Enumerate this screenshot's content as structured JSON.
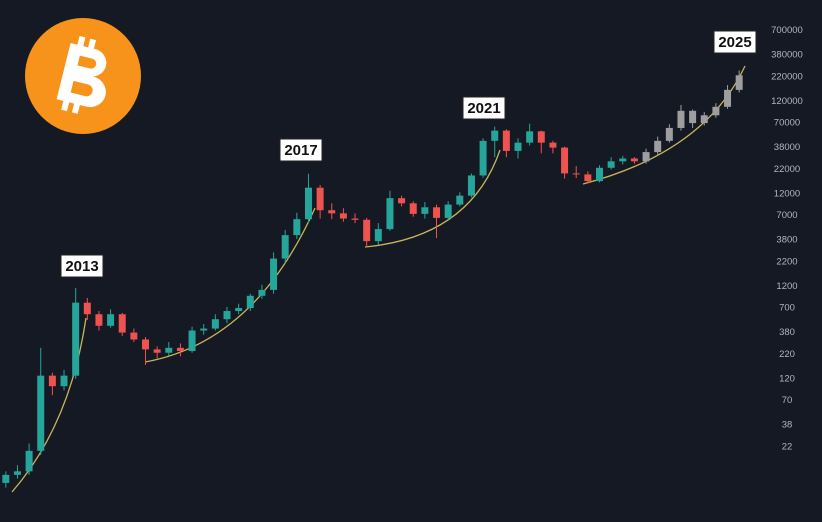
{
  "chart_data": {
    "type": "candlestick",
    "annotations": [
      "2013",
      "2017",
      "2021",
      "2025"
    ],
    "log_scale": true,
    "grid": false,
    "background": "#151924",
    "ylim": [
      3.4,
      1500000
    ],
    "yticks": [
      22,
      38,
      70,
      120,
      220,
      380,
      700,
      1200,
      2200,
      3800,
      7000,
      12000,
      22000,
      38000,
      70000,
      120000,
      220000,
      380000,
      700000
    ],
    "categories": [
      null,
      null,
      null,
      null,
      null,
      null,
      null,
      null,
      null,
      null,
      null,
      null,
      null,
      null,
      null,
      null,
      null,
      null,
      null,
      null,
      null,
      null,
      null,
      null,
      null,
      null,
      null,
      null,
      null,
      null,
      null,
      null,
      null,
      null,
      null,
      null,
      null,
      null,
      null,
      null,
      null,
      null,
      null,
      null,
      null,
      null,
      null,
      null,
      null,
      null,
      null,
      null,
      null,
      null,
      null,
      null,
      null,
      null,
      null,
      null,
      null,
      null,
      null,
      null
    ],
    "series": [
      {
        "up_color": "#26a69a",
        "down_color": "#ef5350",
        "open": [
          9,
          11,
          12,
          20,
          130,
          100,
          130,
          800,
          600,
          450,
          600,
          380,
          320,
          250,
          230,
          260,
          240,
          400,
          420,
          530,
          650,
          700,
          950,
          1100,
          2400,
          4300,
          6400,
          14000,
          8000,
          7400,
          6500,
          6300,
          3700,
          5000,
          10800,
          9500,
          7300,
          8600,
          6600,
          9200,
          11500,
          19000,
          45000,
          58000,
          35000,
          43000,
          57000,
          43000,
          38000,
          20000,
          19500,
          16500,
          23000,
          27000,
          29000,
          null,
          null,
          null,
          null,
          null,
          null,
          null,
          null,
          null
        ],
        "high": [
          12,
          14,
          24,
          260,
          140,
          150,
          1150,
          900,
          650,
          680,
          620,
          420,
          340,
          270,
          300,
          290,
          440,
          470,
          600,
          720,
          780,
          1000,
          1250,
          2800,
          4900,
          7500,
          19800,
          15000,
          9500,
          8400,
          7400,
          6600,
          5800,
          13000,
          11500,
          10000,
          9800,
          9200,
          10000,
          12500,
          20000,
          48000,
          64000,
          60000,
          48000,
          69000,
          58000,
          45000,
          39000,
          24000,
          21000,
          24500,
          30000,
          31000,
          30000,
          null,
          null,
          null,
          null,
          null,
          null,
          null,
          null,
          null
        ],
        "low": [
          8,
          10,
          11,
          18,
          80,
          90,
          120,
          520,
          400,
          430,
          350,
          300,
          170,
          200,
          215,
          210,
          230,
          360,
          400,
          480,
          600,
          650,
          880,
          1000,
          2100,
          3900,
          5800,
          6500,
          6400,
          6000,
          5800,
          3200,
          3400,
          4800,
          8800,
          6800,
          6500,
          4000,
          6300,
          8800,
          11000,
          18000,
          30000,
          30000,
          29000,
          40000,
          33000,
          33000,
          17600,
          17800,
          15500,
          16000,
          22000,
          25000,
          25500,
          null,
          null,
          null,
          null,
          null,
          null,
          null,
          null,
          null
        ],
        "close": [
          11,
          12,
          20,
          130,
          100,
          130,
          800,
          600,
          450,
          600,
          380,
          320,
          250,
          230,
          260,
          240,
          400,
          420,
          530,
          650,
          700,
          950,
          1100,
          2400,
          4300,
          6400,
          14000,
          8000,
          7400,
          6500,
          6300,
          3700,
          5000,
          10800,
          9500,
          7300,
          8600,
          6600,
          9200,
          11500,
          19000,
          45000,
          58000,
          35000,
          43000,
          57000,
          43000,
          38000,
          20000,
          19500,
          16500,
          23000,
          27000,
          29000,
          27000,
          null,
          null,
          null,
          null,
          null,
          null,
          null,
          null,
          null
        ]
      },
      {
        "up_color": "#9e9e9e",
        "down_color": "#9e9e9e",
        "open": [
          null,
          null,
          null,
          null,
          null,
          null,
          null,
          null,
          null,
          null,
          null,
          null,
          null,
          null,
          null,
          null,
          null,
          null,
          null,
          null,
          null,
          null,
          null,
          null,
          null,
          null,
          null,
          null,
          null,
          null,
          null,
          null,
          null,
          null,
          null,
          null,
          null,
          null,
          null,
          null,
          null,
          null,
          null,
          null,
          null,
          null,
          null,
          null,
          null,
          null,
          null,
          null,
          null,
          null,
          null,
          27000,
          34000,
          45000,
          62000,
          95000,
          70000,
          85000,
          105000,
          160000
        ],
        "high": [
          null,
          null,
          null,
          null,
          null,
          null,
          null,
          null,
          null,
          null,
          null,
          null,
          null,
          null,
          null,
          null,
          null,
          null,
          null,
          null,
          null,
          null,
          null,
          null,
          null,
          null,
          null,
          null,
          null,
          null,
          null,
          null,
          null,
          null,
          null,
          null,
          null,
          null,
          null,
          null,
          null,
          null,
          null,
          null,
          null,
          null,
          null,
          null,
          null,
          null,
          null,
          null,
          null,
          null,
          null,
          37000,
          50000,
          68000,
          110000,
          98000,
          92000,
          115000,
          180000,
          260000
        ],
        "low": [
          null,
          null,
          null,
          null,
          null,
          null,
          null,
          null,
          null,
          null,
          null,
          null,
          null,
          null,
          null,
          null,
          null,
          null,
          null,
          null,
          null,
          null,
          null,
          null,
          null,
          null,
          null,
          null,
          null,
          null,
          null,
          null,
          null,
          null,
          null,
          null,
          null,
          null,
          null,
          null,
          null,
          null,
          null,
          null,
          null,
          null,
          null,
          null,
          null,
          null,
          null,
          null,
          null,
          null,
          null,
          25500,
          32000,
          43000,
          58000,
          62000,
          66000,
          80000,
          100000,
          150000
        ],
        "close": [
          null,
          null,
          null,
          null,
          null,
          null,
          null,
          null,
          null,
          null,
          null,
          null,
          null,
          null,
          null,
          null,
          null,
          null,
          null,
          null,
          null,
          null,
          null,
          null,
          null,
          null,
          null,
          null,
          null,
          null,
          null,
          null,
          null,
          null,
          null,
          null,
          null,
          null,
          null,
          null,
          null,
          null,
          null,
          null,
          null,
          null,
          null,
          null,
          null,
          null,
          null,
          null,
          null,
          null,
          null,
          34000,
          45000,
          62000,
          95000,
          70000,
          85000,
          105000,
          160000,
          230000
        ]
      }
    ]
  }
}
